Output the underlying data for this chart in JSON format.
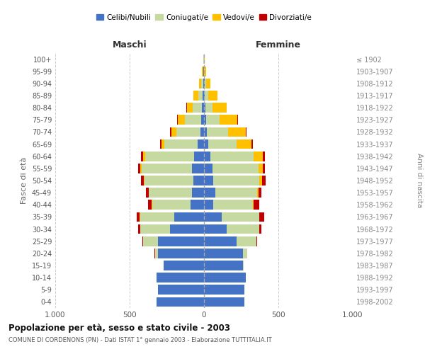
{
  "age_groups": [
    "0-4",
    "5-9",
    "10-14",
    "15-19",
    "20-24",
    "25-29",
    "30-34",
    "35-39",
    "40-44",
    "45-49",
    "50-54",
    "55-59",
    "60-64",
    "65-69",
    "70-74",
    "75-79",
    "80-84",
    "85-89",
    "90-94",
    "95-99",
    "100+"
  ],
  "birth_years": [
    "1998-2002",
    "1993-1997",
    "1988-1992",
    "1983-1987",
    "1978-1982",
    "1973-1977",
    "1968-1972",
    "1963-1967",
    "1958-1962",
    "1953-1957",
    "1948-1952",
    "1943-1947",
    "1938-1942",
    "1933-1937",
    "1928-1932",
    "1923-1927",
    "1918-1922",
    "1913-1917",
    "1908-1912",
    "1903-1907",
    "≤ 1902"
  ],
  "maschi": {
    "celibi": [
      320,
      310,
      320,
      270,
      310,
      310,
      230,
      200,
      90,
      80,
      70,
      80,
      65,
      45,
      25,
      20,
      15,
      10,
      5,
      4,
      2
    ],
    "coniugati": [
      0,
      0,
      0,
      0,
      20,
      100,
      200,
      230,
      260,
      290,
      330,
      340,
      330,
      220,
      160,
      110,
      60,
      30,
      12,
      3,
      2
    ],
    "vedovi": [
      0,
      0,
      0,
      0,
      0,
      0,
      0,
      2,
      2,
      3,
      5,
      10,
      15,
      20,
      35,
      45,
      40,
      30,
      15,
      5,
      1
    ],
    "divorziati": [
      0,
      0,
      0,
      0,
      2,
      5,
      15,
      20,
      25,
      18,
      20,
      15,
      15,
      10,
      8,
      5,
      2,
      0,
      0,
      0,
      0
    ]
  },
  "femmine": {
    "nubili": [
      270,
      270,
      280,
      260,
      260,
      220,
      150,
      120,
      60,
      75,
      60,
      55,
      45,
      30,
      20,
      15,
      10,
      7,
      4,
      2,
      1
    ],
    "coniugate": [
      0,
      0,
      0,
      5,
      30,
      130,
      220,
      250,
      270,
      280,
      310,
      310,
      290,
      190,
      140,
      90,
      45,
      20,
      10,
      3,
      1
    ],
    "vedove": [
      0,
      0,
      0,
      0,
      0,
      2,
      2,
      3,
      5,
      10,
      20,
      30,
      60,
      100,
      120,
      120,
      95,
      65,
      30,
      10,
      2
    ],
    "divorziate": [
      0,
      0,
      0,
      0,
      2,
      5,
      15,
      30,
      35,
      20,
      25,
      15,
      15,
      10,
      8,
      5,
      2,
      0,
      0,
      0,
      0
    ]
  },
  "colors": {
    "celibi": "#4472c4",
    "coniugati": "#c5d9a0",
    "vedovi": "#ffc000",
    "divorziati": "#c00000"
  },
  "title": "Popolazione per età, sesso e stato civile - 2003",
  "subtitle": "COMUNE DI CORDENONS (PN) - Dati ISTAT 1° gennaio 2003 - Elaborazione TUTTITALIA.IT",
  "xlabel_left": "Maschi",
  "xlabel_right": "Femmine",
  "ylabel_left": "Fasce di età",
  "ylabel_right": "Anni di nascita",
  "xlim": 1000,
  "background_color": "#ffffff",
  "grid_color": "#cccccc"
}
